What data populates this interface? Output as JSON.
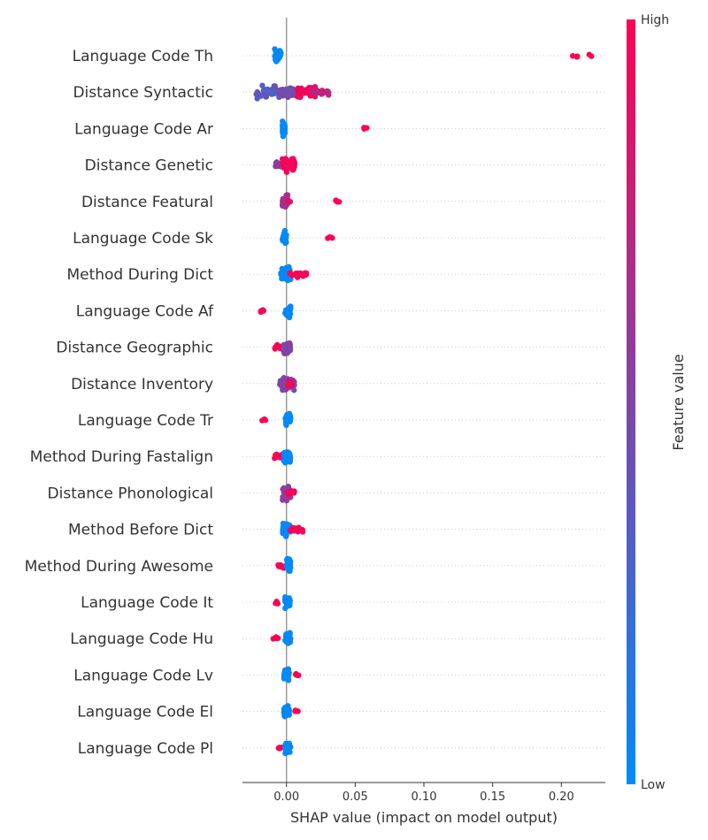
{
  "chart_data": {
    "type": "scatter",
    "subtype": "shap-beeswarm",
    "xlabel": "SHAP value (impact on model output)",
    "xlim": [
      -0.032,
      0.232
    ],
    "x_ticks": [
      {
        "value": 0.0,
        "label": "0.00"
      },
      {
        "value": 0.05,
        "label": "0.05"
      },
      {
        "value": 0.1,
        "label": "0.10"
      },
      {
        "value": 0.15,
        "label": "0.15"
      },
      {
        "value": 0.2,
        "label": "0.20"
      }
    ],
    "colorbar": {
      "label": "Feature value",
      "high_label": "High",
      "low_label": "Low",
      "colors": [
        "#008bfb",
        "#ff0052"
      ]
    },
    "grid": "horizontal-dotted",
    "features": [
      {
        "name": "Language Code Th",
        "clusters": [
          {
            "from": -0.009,
            "to": -0.004,
            "color": 0.0,
            "count": 45,
            "spread": 1.0
          },
          {
            "from": 0.207,
            "to": 0.222,
            "color": 1.0,
            "count": 5,
            "spread": 0.2
          }
        ]
      },
      {
        "name": "Distance Syntactic",
        "clusters": [
          {
            "from": -0.022,
            "to": -0.005,
            "color": 0.35,
            "count": 40,
            "spread": 1.0
          },
          {
            "from": -0.005,
            "to": 0.008,
            "color": 0.45,
            "count": 45,
            "spread": 0.9
          },
          {
            "from": 0.008,
            "to": 0.022,
            "color": 0.95,
            "count": 40,
            "spread": 0.8
          },
          {
            "from": 0.018,
            "to": 0.031,
            "color": 0.75,
            "count": 25,
            "spread": 0.5
          }
        ]
      },
      {
        "name": "Language Code Ar",
        "clusters": [
          {
            "from": -0.003,
            "to": -0.001,
            "color": 0.0,
            "count": 35,
            "spread": 1.0
          },
          {
            "from": 0.052,
            "to": 0.059,
            "color": 1.0,
            "count": 4,
            "spread": 0.2
          }
        ]
      },
      {
        "name": "Distance Genetic",
        "clusters": [
          {
            "from": -0.008,
            "to": -0.002,
            "color": 0.55,
            "count": 15,
            "spread": 0.6
          },
          {
            "from": -0.003,
            "to": 0.006,
            "color": 0.95,
            "count": 60,
            "spread": 1.0
          }
        ]
      },
      {
        "name": "Distance Featural",
        "clusters": [
          {
            "from": -0.003,
            "to": 0.001,
            "color": 0.65,
            "count": 35,
            "spread": 1.0
          },
          {
            "from": 0.001,
            "to": 0.003,
            "color": 0.95,
            "count": 3,
            "spread": 0.2
          },
          {
            "from": 0.034,
            "to": 0.04,
            "color": 1.0,
            "count": 4,
            "spread": 0.2
          }
        ]
      },
      {
        "name": "Language Code Sk",
        "clusters": [
          {
            "from": -0.003,
            "to": 0.0,
            "color": 0.0,
            "count": 40,
            "spread": 1.0
          },
          {
            "from": 0.03,
            "to": 0.034,
            "color": 1.0,
            "count": 4,
            "spread": 0.2
          }
        ]
      },
      {
        "name": "Method During Dict",
        "clusters": [
          {
            "from": -0.004,
            "to": 0.003,
            "color": 0.0,
            "count": 35,
            "spread": 1.0
          },
          {
            "from": 0.002,
            "to": 0.015,
            "color": 1.0,
            "count": 18,
            "spread": 0.4
          }
        ]
      },
      {
        "name": "Language Code Af",
        "clusters": [
          {
            "from": -0.019,
            "to": -0.015,
            "color": 1.0,
            "count": 4,
            "spread": 0.2
          },
          {
            "from": -0.001,
            "to": 0.003,
            "color": 0.0,
            "count": 35,
            "spread": 1.0
          }
        ]
      },
      {
        "name": "Distance Geographic",
        "clusters": [
          {
            "from": -0.009,
            "to": -0.002,
            "color": 1.0,
            "count": 10,
            "spread": 0.4
          },
          {
            "from": -0.002,
            "to": 0.003,
            "color": 0.5,
            "count": 40,
            "spread": 1.0
          }
        ]
      },
      {
        "name": "Distance Inventory",
        "clusters": [
          {
            "from": -0.005,
            "to": 0.006,
            "color": 0.5,
            "count": 50,
            "spread": 1.0
          },
          {
            "from": 0.0,
            "to": 0.004,
            "color": 0.95,
            "count": 8,
            "spread": 0.5
          }
        ]
      },
      {
        "name": "Language Code Tr",
        "clusters": [
          {
            "from": -0.018,
            "to": -0.015,
            "color": 1.0,
            "count": 4,
            "spread": 0.2
          },
          {
            "from": -0.001,
            "to": 0.003,
            "color": 0.0,
            "count": 35,
            "spread": 1.0
          }
        ]
      },
      {
        "name": "Method During Fastalign",
        "clusters": [
          {
            "from": -0.01,
            "to": -0.003,
            "color": 1.0,
            "count": 12,
            "spread": 0.4
          },
          {
            "from": -0.002,
            "to": 0.003,
            "color": 0.0,
            "count": 35,
            "spread": 1.0
          }
        ]
      },
      {
        "name": "Distance Phonological",
        "clusters": [
          {
            "from": -0.003,
            "to": 0.003,
            "color": 0.55,
            "count": 45,
            "spread": 1.0
          },
          {
            "from": 0.0,
            "to": 0.006,
            "color": 0.95,
            "count": 12,
            "spread": 0.4
          }
        ]
      },
      {
        "name": "Method Before Dict",
        "clusters": [
          {
            "from": -0.003,
            "to": 0.003,
            "color": 0.0,
            "count": 35,
            "spread": 1.0
          },
          {
            "from": 0.002,
            "to": 0.012,
            "color": 1.0,
            "count": 12,
            "spread": 0.35
          }
        ]
      },
      {
        "name": "Method During Awesome",
        "clusters": [
          {
            "from": -0.006,
            "to": 0.0,
            "color": 1.0,
            "count": 10,
            "spread": 0.35
          },
          {
            "from": 0.0,
            "to": 0.003,
            "color": 0.0,
            "count": 35,
            "spread": 1.0
          }
        ]
      },
      {
        "name": "Language Code It",
        "clusters": [
          {
            "from": -0.009,
            "to": -0.006,
            "color": 1.0,
            "count": 4,
            "spread": 0.2
          },
          {
            "from": -0.001,
            "to": 0.003,
            "color": 0.0,
            "count": 35,
            "spread": 1.0
          }
        ]
      },
      {
        "name": "Language Code Hu",
        "clusters": [
          {
            "from": -0.01,
            "to": -0.006,
            "color": 1.0,
            "count": 5,
            "spread": 0.2
          },
          {
            "from": -0.001,
            "to": 0.003,
            "color": 0.0,
            "count": 35,
            "spread": 1.0
          }
        ]
      },
      {
        "name": "Language Code Lv",
        "clusters": [
          {
            "from": -0.002,
            "to": 0.002,
            "color": 0.0,
            "count": 35,
            "spread": 1.0
          },
          {
            "from": 0.006,
            "to": 0.009,
            "color": 1.0,
            "count": 4,
            "spread": 0.2
          }
        ]
      },
      {
        "name": "Language Code El",
        "clusters": [
          {
            "from": -0.002,
            "to": 0.002,
            "color": 0.0,
            "count": 35,
            "spread": 1.0
          },
          {
            "from": 0.005,
            "to": 0.009,
            "color": 1.0,
            "count": 4,
            "spread": 0.2
          }
        ]
      },
      {
        "name": "Language Code Pl",
        "clusters": [
          {
            "from": -0.007,
            "to": -0.003,
            "color": 1.0,
            "count": 5,
            "spread": 0.2
          },
          {
            "from": -0.001,
            "to": 0.003,
            "color": 0.0,
            "count": 35,
            "spread": 1.0
          }
        ]
      }
    ]
  }
}
